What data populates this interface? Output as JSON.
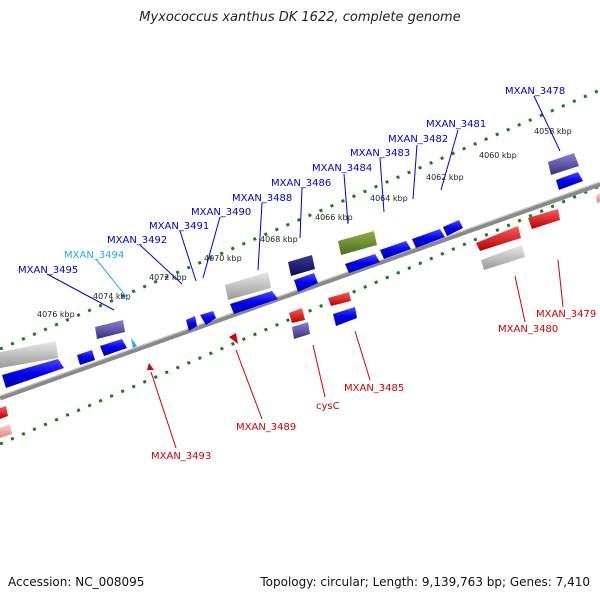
{
  "title": "Myxococcus xanthus DK 1622, complete genome",
  "footer": {
    "accession": "Accession: NC_008095",
    "summary": "Topology: circular; Length: 9,139,763 bp; Genes: 7,410"
  },
  "ticks": [
    "4058 kbp",
    "4060 kbp",
    "4062 kbp",
    "4064 kbp",
    "4066 kbp",
    "4068 kbp",
    "4070 kbp",
    "4072 kbp",
    "4074 kbp",
    "4076 kbp"
  ],
  "forward_genes": [
    "MXAN_3478",
    "MXAN_3481",
    "MXAN_3482",
    "MXAN_3483",
    "MXAN_3484",
    "MXAN_3486",
    "MXAN_3488",
    "MXAN_3490",
    "MXAN_3491",
    "MXAN_3492",
    "MXAN_3494",
    "MXAN_3495"
  ],
  "reverse_genes": [
    "MXAN_3479",
    "MXAN_3480",
    "MXAN_3485",
    "cysC",
    "MXAN_3489",
    "MXAN_3493"
  ],
  "colors": {
    "forward": "#0000ee",
    "forward_highlight": "#22aaee",
    "reverse": "#dd0000",
    "backbone": "#888888",
    "ticks": "#227722"
  }
}
